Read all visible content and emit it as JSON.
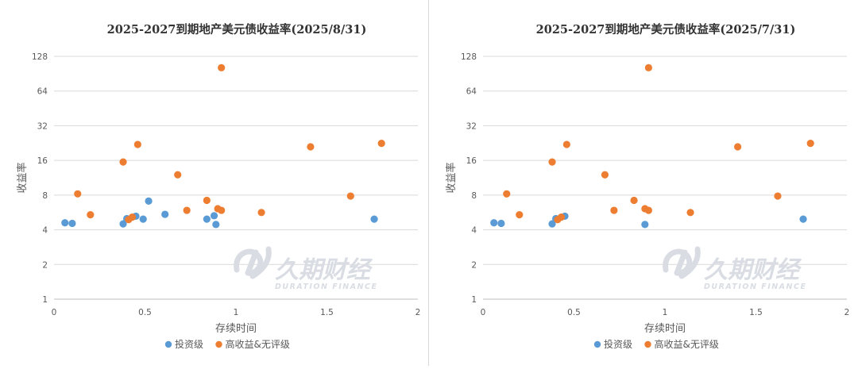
{
  "chart_data": [
    {
      "type": "scatter",
      "title": "2025-2027到期地产美元债收益率(2025/8/31)",
      "xlabel": "存续时间",
      "ylabel": "收益率",
      "xlim": [
        0,
        2
      ],
      "xticks": [
        "0",
        "0.5",
        "1",
        "1.5",
        "2"
      ],
      "ylim": [
        1,
        128
      ],
      "yscale": "log2",
      "yticks": [
        "1",
        "2",
        "4",
        "8",
        "16",
        "32",
        "64",
        "128"
      ],
      "grid": "horizontal",
      "legend_position": "bottom",
      "series": [
        {
          "name": "投资级",
          "color": "#5b9bd5",
          "points": [
            [
              0.06,
              4.6
            ],
            [
              0.1,
              4.55
            ],
            [
              0.38,
              4.5
            ],
            [
              0.4,
              5.0
            ],
            [
              0.45,
              5.25
            ],
            [
              0.49,
              4.95
            ],
            [
              0.52,
              7.1
            ],
            [
              0.61,
              5.45
            ],
            [
              0.84,
              4.95
            ],
            [
              0.88,
              5.3
            ],
            [
              0.89,
              4.45
            ],
            [
              1.76,
              4.95
            ]
          ]
        },
        {
          "name": "高收益&无评级",
          "color": "#ed7d31",
          "points": [
            [
              0.13,
              8.2
            ],
            [
              0.2,
              5.4
            ],
            [
              0.38,
              15.5
            ],
            [
              0.41,
              4.9
            ],
            [
              0.43,
              5.15
            ],
            [
              0.46,
              22.0
            ],
            [
              0.68,
              12.0
            ],
            [
              0.73,
              5.9
            ],
            [
              0.84,
              7.2
            ],
            [
              0.9,
              6.1
            ],
            [
              0.92,
              5.9
            ],
            [
              0.92,
              102
            ],
            [
              1.14,
              5.65
            ],
            [
              1.41,
              21.0
            ],
            [
              1.63,
              7.85
            ],
            [
              1.8,
              22.5
            ]
          ]
        }
      ]
    },
    {
      "type": "scatter",
      "title": "2025-2027到期地产美元债收益率(2025/7/31)",
      "xlabel": "存续时间",
      "ylabel": "收益率",
      "xlim": [
        0,
        2
      ],
      "xticks": [
        "0",
        "0.5",
        "1",
        "1.5",
        "2"
      ],
      "ylim": [
        1,
        128
      ],
      "yscale": "log2",
      "yticks": [
        "1",
        "2",
        "4",
        "8",
        "16",
        "32",
        "64",
        "128"
      ],
      "grid": "horizontal",
      "legend_position": "bottom",
      "series": [
        {
          "name": "投资级",
          "color": "#5b9bd5",
          "points": [
            [
              0.06,
              4.6
            ],
            [
              0.1,
              4.55
            ],
            [
              0.38,
              4.5
            ],
            [
              0.4,
              5.0
            ],
            [
              0.45,
              5.25
            ],
            [
              0.89,
              4.45
            ],
            [
              1.76,
              4.95
            ]
          ]
        },
        {
          "name": "高收益&无评级",
          "color": "#ed7d31",
          "points": [
            [
              0.13,
              8.2
            ],
            [
              0.2,
              5.4
            ],
            [
              0.38,
              15.5
            ],
            [
              0.41,
              4.9
            ],
            [
              0.43,
              5.15
            ],
            [
              0.46,
              22.0
            ],
            [
              0.67,
              12.0
            ],
            [
              0.72,
              5.9
            ],
            [
              0.83,
              7.2
            ],
            [
              0.89,
              6.1
            ],
            [
              0.91,
              5.9
            ],
            [
              0.91,
              102
            ],
            [
              1.14,
              5.65
            ],
            [
              1.4,
              21.0
            ],
            [
              1.62,
              7.85
            ],
            [
              1.8,
              22.5
            ]
          ]
        }
      ]
    }
  ],
  "watermark": {
    "brand": "久期财经",
    "sub": "DURATION FINANCE"
  }
}
